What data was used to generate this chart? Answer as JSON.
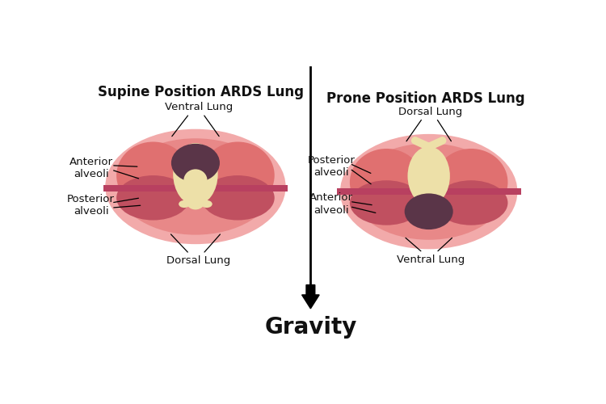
{
  "bg_color": "#ffffff",
  "title_left": "Supine Position ARDS Lung",
  "title_right": "Prone Position ARDS Lung",
  "gravity_label": "Gravity",
  "color_outer_ellipse": "#f2aaaa",
  "color_outer_ring": "#e88888",
  "color_lung_upper": "#e07070",
  "color_lung_lower_dark": "#c05060",
  "color_collapsed_dark": "#5a3548",
  "color_spine_cream": "#ede0a8",
  "color_divider": "#b84060",
  "arrow_color": "#111111",
  "label_color": "#111111",
  "font_size_title": 12,
  "font_size_label": 9.5,
  "font_size_gravity": 20
}
